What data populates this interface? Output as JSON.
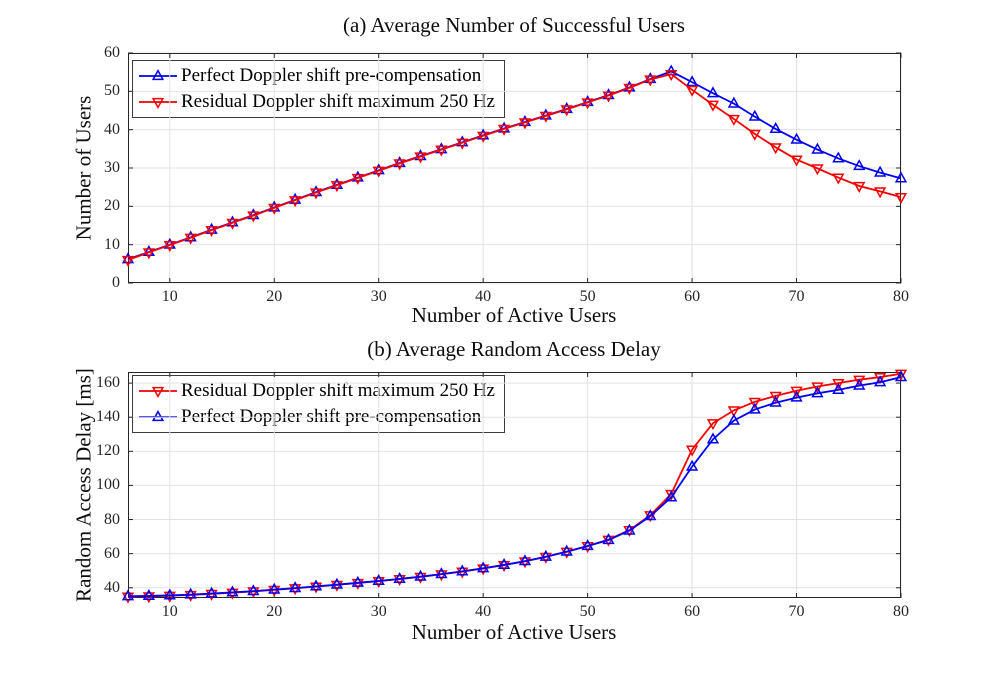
{
  "page": {
    "background": "#ffffff"
  },
  "colors": {
    "blue": "#0000f0",
    "red": "#f50000",
    "grid": "#e2e2e2",
    "axis": "#262626",
    "text": "#0d0d0d"
  },
  "chart_data": [
    {
      "type": "line",
      "title": "(a) Average Number of Successful Users",
      "xlabel": "Number of Active Users",
      "ylabel": "Number of Users",
      "xlim": [
        6,
        80
      ],
      "ylim": [
        0,
        60
      ],
      "xticks": [
        10,
        20,
        30,
        40,
        50,
        60,
        70,
        80
      ],
      "yticks": [
        0,
        10,
        20,
        30,
        40,
        50,
        60
      ],
      "grid": true,
      "legend_position": "top-left",
      "x": [
        6,
        8,
        10,
        12,
        14,
        16,
        18,
        20,
        22,
        24,
        26,
        28,
        30,
        32,
        34,
        36,
        38,
        40,
        42,
        44,
        46,
        48,
        50,
        52,
        54,
        56,
        58,
        60,
        62,
        64,
        66,
        68,
        70,
        72,
        74,
        76,
        78,
        80
      ],
      "series": [
        {
          "name": "Perfect Doppler shift pre-compensation",
          "color": "#0000f0",
          "marker": "triangle-up",
          "values": [
            6.2,
            8.1,
            10,
            11.9,
            13.9,
            15.8,
            17.7,
            19.7,
            21.7,
            23.7,
            25.6,
            27.5,
            29.4,
            31.3,
            33.1,
            34.9,
            36.7,
            38.5,
            40.3,
            42,
            43.7,
            45.4,
            47.2,
            49,
            51,
            53.2,
            55.2,
            52.4,
            49.5,
            46.8,
            43.4,
            40.2,
            37.4,
            34.8,
            32.5,
            30.5,
            28.8,
            27.3
          ]
        },
        {
          "name": "Residual Doppler shift maximum 250 Hz",
          "color": "#f50000",
          "marker": "triangle-down",
          "values": [
            6,
            8,
            9.9,
            11.8,
            13.8,
            15.7,
            17.6,
            19.6,
            21.6,
            23.6,
            25.5,
            27.4,
            29.3,
            31.2,
            33,
            34.8,
            36.6,
            38.4,
            40.2,
            41.9,
            43.6,
            45.3,
            47.1,
            48.9,
            50.9,
            53.1,
            54.5,
            50.4,
            46.5,
            42.8,
            38.9,
            35.4,
            32.2,
            29.9,
            27.5,
            25.3,
            23.9,
            22.4
          ]
        }
      ]
    },
    {
      "type": "line",
      "title": "(b) Average Random Access Delay",
      "xlabel": "Number of Active Users",
      "ylabel": "Random Access Delay [ms]",
      "xlim": [
        6,
        80
      ],
      "ylim": [
        34,
        166.5
      ],
      "xticks": [
        10,
        20,
        30,
        40,
        50,
        60,
        70,
        80
      ],
      "yticks": [
        40,
        60,
        80,
        100,
        120,
        140,
        160
      ],
      "grid": true,
      "legend_position": "top-left",
      "x": [
        6,
        8,
        10,
        12,
        14,
        16,
        18,
        20,
        22,
        24,
        26,
        28,
        30,
        32,
        34,
        36,
        38,
        40,
        42,
        44,
        46,
        48,
        50,
        52,
        54,
        56,
        58,
        60,
        62,
        64,
        66,
        68,
        70,
        72,
        74,
        76,
        78,
        80
      ],
      "series": [
        {
          "name": "Residual Doppler shift maximum 250 Hz",
          "color": "#f50000",
          "marker": "triangle-down",
          "values": [
            34.8,
            35,
            35.3,
            35.8,
            36.4,
            37.1,
            37.9,
            38.8,
            39.7,
            40.7,
            41.7,
            42.8,
            43.9,
            45.1,
            46.4,
            47.9,
            49.5,
            51.3,
            53.3,
            55.5,
            58.1,
            61.1,
            64.4,
            68.2,
            73.8,
            82.5,
            95,
            121,
            136.5,
            144,
            149,
            152.5,
            155.5,
            158,
            160,
            162,
            163.5,
            165.5
          ]
        },
        {
          "name": "Perfect Doppler shift pre-compensation",
          "color": "#0000f0",
          "marker": "triangle-up",
          "values": [
            35,
            35.2,
            35.5,
            36,
            36.6,
            37.3,
            38,
            38.9,
            39.8,
            40.8,
            41.8,
            42.9,
            44,
            45.2,
            46.5,
            48,
            49.6,
            51.4,
            53.4,
            55.6,
            58.2,
            61.2,
            64.5,
            68,
            73.5,
            82,
            93,
            111,
            127,
            138,
            144.5,
            148.5,
            151.5,
            154,
            156,
            158.5,
            160.5,
            163.5
          ]
        }
      ]
    }
  ]
}
